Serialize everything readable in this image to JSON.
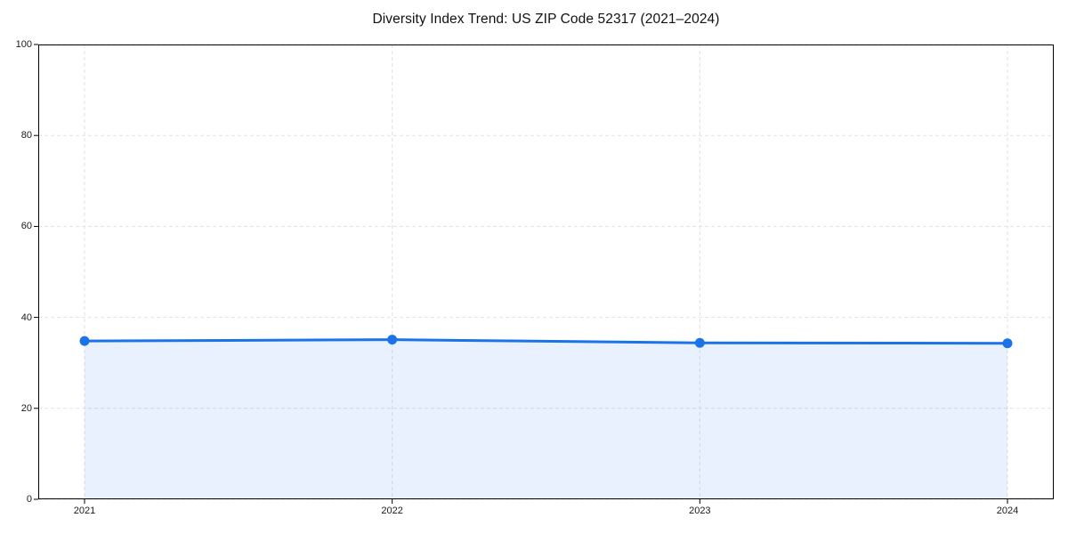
{
  "chart_data": {
    "type": "line",
    "title": "Diversity Index Trend: US ZIP Code 52317 (2021–2024)",
    "categories": [
      "2021",
      "2022",
      "2023",
      "2024"
    ],
    "series": [
      {
        "name": "Diversity Index",
        "values": [
          34.8,
          35.1,
          34.4,
          34.3
        ]
      }
    ],
    "xlabel": "",
    "ylabel": "",
    "ylim": [
      0,
      100
    ],
    "yticks": [
      0,
      20,
      40,
      60,
      80,
      100
    ],
    "grid": "dashed",
    "legend": "none",
    "area_fill": true,
    "marker": "circle",
    "colors": {
      "line": "#1a73e8",
      "marker": "#1a73e8",
      "area": "rgba(26,115,232,0.10)",
      "grid": "#e2e2e2",
      "spine": "#000000",
      "text": "#1a1a1a",
      "background": "#ffffff"
    }
  }
}
